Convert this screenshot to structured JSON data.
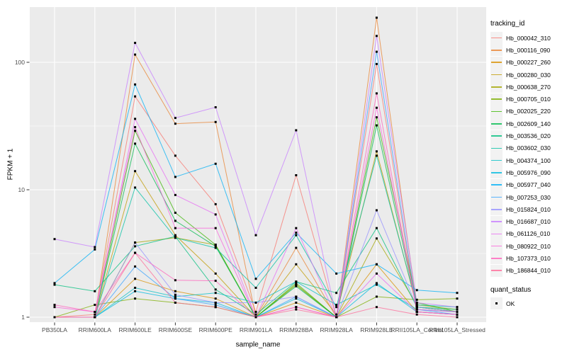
{
  "figure": {
    "y_axis_title": "FPKM + 1",
    "x_axis_title": "sample_name",
    "legend_title": "tracking_id",
    "quant_legend_title": "quant_status",
    "quant_legend_item": "OK",
    "panel_bg": "#EBEBEB",
    "gridline_color": "#FFFFFF",
    "tick_label_color": "#4D4D4D",
    "point_color": "#000000",
    "y_tick_labels": [
      "1",
      "10",
      "100"
    ]
  },
  "chart_data": {
    "type": "line",
    "title": "",
    "xlabel": "sample_name",
    "ylabel": "FPKM + 1",
    "y_scale": "log10",
    "ylim": [
      0.91,
      275
    ],
    "y_ticks": [
      1,
      10,
      100
    ],
    "y_minor_ticks": [
      3.1623,
      31.623
    ],
    "grid": true,
    "legend_position": "right",
    "point_marker": "filled black square (quant_status = OK)",
    "x_categories": [
      "PB350LA",
      "RRIM600LA",
      "RRIM600LE",
      "RRIM600SE",
      "RRIM600PE",
      "RRIM901LA",
      "RRIM928BA",
      "RRIM928LA",
      "RRIM928LE",
      "RRII105LA_Control",
      "RRII105LA_Stressed"
    ],
    "series": [
      {
        "name": "Hb_000042_310",
        "color": "#F8766D",
        "values": [
          1.0,
          1.05,
          54,
          18.5,
          7.7,
          1.1,
          13,
          1.0,
          97,
          1.1,
          1.05
        ]
      },
      {
        "name": "Hb_000116_090",
        "color": "#EA8331",
        "values": [
          1.0,
          1.0,
          115,
          33,
          34,
          1.0,
          3.5,
          1.0,
          224,
          1.2,
          1.1
        ]
      },
      {
        "name": "Hb_000227_260",
        "color": "#D89000",
        "values": [
          1.0,
          1.0,
          2.0,
          1.6,
          1.4,
          1.0,
          1.3,
          1.0,
          2.6,
          1.1,
          1.05
        ]
      },
      {
        "name": "Hb_000280_030",
        "color": "#C09B00",
        "values": [
          1.0,
          1.0,
          14,
          4.4,
          2.2,
          1.0,
          2.6,
          1.05,
          20,
          1.2,
          1.1
        ]
      },
      {
        "name": "Hb_000638_270",
        "color": "#A3A500",
        "values": [
          1.0,
          1.0,
          3.85,
          4.2,
          3.7,
          1.0,
          1.8,
          1.0,
          4.15,
          1.25,
          1.15
        ]
      },
      {
        "name": "Hb_000705_010",
        "color": "#7CAE00",
        "values": [
          1.0,
          1.25,
          1.4,
          1.3,
          1.2,
          1.0,
          1.8,
          1.0,
          1.45,
          1.37,
          1.4
        ]
      },
      {
        "name": "Hb_002025_220",
        "color": "#39B600",
        "values": [
          1.0,
          1.0,
          29,
          6.6,
          3.7,
          1.0,
          1.85,
          1.0,
          37,
          1.3,
          1.1
        ]
      },
      {
        "name": "Hb_002609_140",
        "color": "#00BB4E",
        "values": [
          1.0,
          1.0,
          23,
          5.7,
          3.6,
          1.0,
          1.75,
          1.0,
          32,
          1.2,
          1.1
        ]
      },
      {
        "name": "Hb_003536_020",
        "color": "#00BF7D",
        "values": [
          1.8,
          1.6,
          3.6,
          4.3,
          1.65,
          1.05,
          1.9,
          1.55,
          5.0,
          1.2,
          1.15
        ]
      },
      {
        "name": "Hb_003602_030",
        "color": "#00C1A3",
        "values": [
          1.0,
          1.0,
          10.4,
          4.2,
          3.5,
          1.7,
          4.4,
          1.2,
          18.5,
          1.25,
          1.2
        ]
      },
      {
        "name": "Hb_004374_100",
        "color": "#00BFC4",
        "values": [
          1.0,
          1.0,
          1.7,
          1.45,
          1.55,
          1.3,
          1.9,
          1.25,
          1.8,
          1.15,
          1.1
        ]
      },
      {
        "name": "Hb_005976_090",
        "color": "#00BAE0",
        "values": [
          1.0,
          1.0,
          1.6,
          1.4,
          1.3,
          1.0,
          1.4,
          1.0,
          1.85,
          1.1,
          1.05
        ]
      },
      {
        "name": "Hb_005977_040",
        "color": "#00B0F6",
        "values": [
          1.85,
          3.4,
          67,
          12.6,
          16,
          2.0,
          4.6,
          2.2,
          2.6,
          1.63,
          1.55
        ]
      },
      {
        "name": "Hb_007253_030",
        "color": "#35A2FF",
        "values": [
          1.0,
          1.0,
          2.5,
          1.4,
          1.25,
          1.0,
          1.45,
          1.0,
          121,
          1.15,
          1.05
        ]
      },
      {
        "name": "Hb_015824_010",
        "color": "#9590FF",
        "values": [
          1.0,
          1.0,
          3.85,
          1.5,
          1.3,
          1.3,
          1.45,
          1.0,
          6.9,
          1.2,
          1.1
        ]
      },
      {
        "name": "Hb_016687_010",
        "color": "#C77CFF",
        "values": [
          4.1,
          3.55,
          142,
          36.6,
          44.4,
          4.4,
          29.3,
          1.0,
          161,
          1.3,
          1.2
        ]
      },
      {
        "name": "Hb_061126_010",
        "color": "#E76BF3",
        "values": [
          1.0,
          1.0,
          36,
          9.1,
          6.4,
          1.0,
          5.0,
          1.0,
          2.2,
          1.1,
          1.05
        ]
      },
      {
        "name": "Hb_080922_010",
        "color": "#FA62DB",
        "values": [
          1.2,
          1.1,
          31,
          5.0,
          5.0,
          1.0,
          1.2,
          1.0,
          44,
          1.15,
          1.1
        ]
      },
      {
        "name": "Hb_107373_010",
        "color": "#FF62BC",
        "values": [
          1.25,
          1.1,
          3.2,
          1.95,
          1.93,
          1.0,
          1.2,
          1.0,
          57,
          1.1,
          1.05
        ]
      },
      {
        "name": "Hb_186844_010",
        "color": "#FF6A98",
        "values": [
          1.0,
          1.0,
          3.2,
          1.3,
          1.2,
          1.0,
          1.15,
          1.0,
          1.2,
          1.05,
          1.0
        ]
      }
    ]
  }
}
